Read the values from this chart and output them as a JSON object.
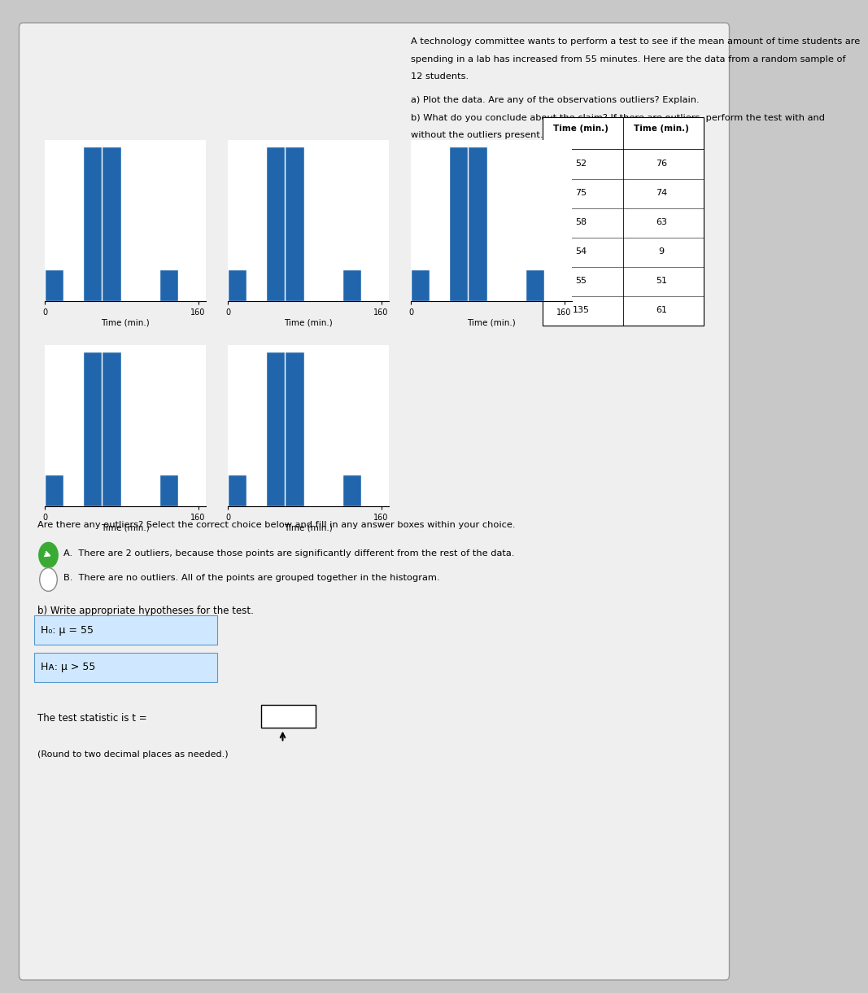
{
  "data": [
    52,
    75,
    58,
    54,
    55,
    135,
    76,
    74,
    63,
    9,
    51,
    61
  ],
  "table_col1": [
    52,
    75,
    58,
    54,
    55,
    135
  ],
  "table_col2": [
    76,
    74,
    63,
    9,
    51,
    61
  ],
  "title_line1": "A technology committee wants to perform a test to see if the mean amount of time students are",
  "title_line2": "spending in a lab has increased from 55 minutes. Here are the data from a random sample of",
  "title_line3": "12 students.",
  "part_a_line1": "a) Plot the data. Are any of the observations outliers? Explain.",
  "part_a_line2": "b) What do you conclude about the claim? If there are outliers, perform the test with and",
  "part_a_line3": "without the outliers present.",
  "xlabel": "Time (min.)",
  "bar_color": "#2166ac",
  "test_stat_label": "The test statistic is t =",
  "round_note": "(Round to two decimal places as needed.)",
  "outlier_question": "Are there any outliers? Select the correct choice below and fill in any answer boxes within your choice.",
  "choice_A": "A.  There are 2 outliers, because those points are significantly different from the rest of the data.",
  "choice_B": "B.  There are no outliers. All of the points are grouped together in the histogram.",
  "part_b_label": "b) Write appropriate hypotheses for the test.",
  "H0": "H₀: μ = 55",
  "HA": "Hᴀ: μ > 55"
}
